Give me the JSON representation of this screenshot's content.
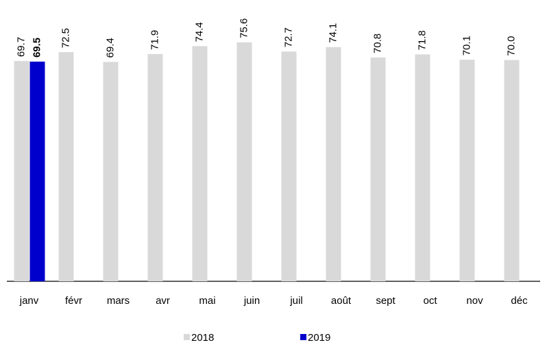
{
  "chart_data": {
    "type": "bar",
    "categories": [
      "janv",
      "févr",
      "mars",
      "avr",
      "mai",
      "juin",
      "juil",
      "août",
      "sept",
      "oct",
      "nov",
      "déc"
    ],
    "series": [
      {
        "name": "2018",
        "color": "#d9d9d9",
        "values": [
          69.7,
          72.5,
          69.4,
          71.9,
          74.4,
          75.6,
          72.7,
          74.1,
          70.8,
          71.8,
          70.1,
          70.0
        ],
        "value_labels": [
          "69.7",
          "72.5",
          "69.4",
          "71.9",
          "74.4",
          "75.6",
          "72.7",
          "74.1",
          "70.8",
          "71.8",
          "70.1",
          "70.0"
        ]
      },
      {
        "name": "2019",
        "color": "#0000cc",
        "values": [
          69.5,
          null,
          null,
          null,
          null,
          null,
          null,
          null,
          null,
          null,
          null,
          null
        ],
        "value_labels": [
          "69.5",
          null,
          null,
          null,
          null,
          null,
          null,
          null,
          null,
          null,
          null,
          null
        ]
      }
    ],
    "ylim": [
      0,
      89
    ]
  }
}
